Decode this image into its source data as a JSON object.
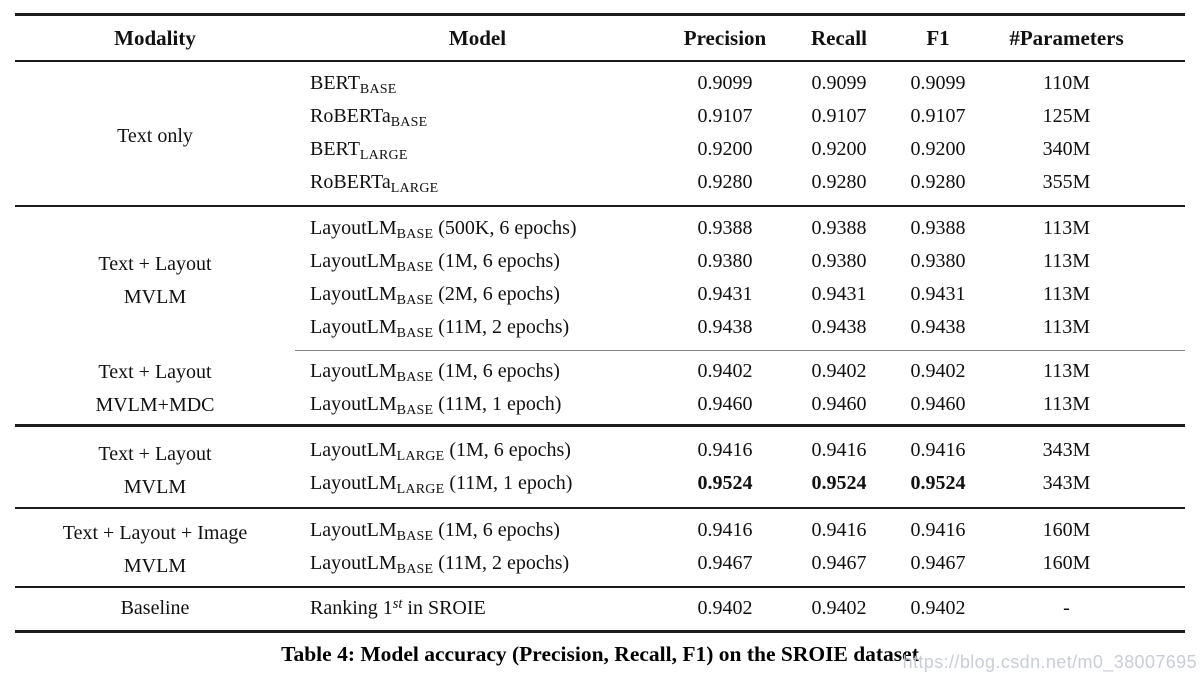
{
  "caption": "Table 4: Model accuracy (Precision, Recall, F1) on the SROIE dataset",
  "watermark": "https://blog.csdn.net/m0_38007695",
  "rule_colors": {
    "main": "#1c1c1c",
    "partial": "#8a8a8a"
  },
  "table": {
    "columns": [
      "Modality",
      "Model",
      "Precision",
      "Recall",
      "F1",
      "#Parameters"
    ],
    "sections": [
      {
        "modality_lines": [
          "Text only"
        ],
        "partial_rule_after": false,
        "rows": [
          {
            "model": [
              {
                "t": "text",
                "v": "BERT"
              },
              {
                "t": "sub",
                "v": "BASE"
              }
            ],
            "precision": "0.9099",
            "recall": "0.9099",
            "f1": "0.9099",
            "params": "110M",
            "bold": false
          },
          {
            "model": [
              {
                "t": "text",
                "v": "RoBERTa"
              },
              {
                "t": "sub",
                "v": "BASE"
              }
            ],
            "precision": "0.9107",
            "recall": "0.9107",
            "f1": "0.9107",
            "params": "125M",
            "bold": false
          },
          {
            "model": [
              {
                "t": "text",
                "v": "BERT"
              },
              {
                "t": "sub",
                "v": "LARGE"
              }
            ],
            "precision": "0.9200",
            "recall": "0.9200",
            "f1": "0.9200",
            "params": "340M",
            "bold": false
          },
          {
            "model": [
              {
                "t": "text",
                "v": "RoBERTa"
              },
              {
                "t": "sub",
                "v": "LARGE"
              }
            ],
            "precision": "0.9280",
            "recall": "0.9280",
            "f1": "0.9280",
            "params": "355M",
            "bold": false
          }
        ]
      },
      {
        "modality_lines": [
          "Text + Layout",
          "MVLM"
        ],
        "partial_rule_after": true,
        "rows": [
          {
            "model": [
              {
                "t": "text",
                "v": "LayoutLM"
              },
              {
                "t": "sub",
                "v": "BASE"
              },
              {
                "t": "text",
                "v": " (500K, 6 epochs)"
              }
            ],
            "precision": "0.9388",
            "recall": "0.9388",
            "f1": "0.9388",
            "params": "113M",
            "bold": false
          },
          {
            "model": [
              {
                "t": "text",
                "v": "LayoutLM"
              },
              {
                "t": "sub",
                "v": "BASE"
              },
              {
                "t": "text",
                "v": " (1M, 6 epochs)"
              }
            ],
            "precision": "0.9380",
            "recall": "0.9380",
            "f1": "0.9380",
            "params": "113M",
            "bold": false
          },
          {
            "model": [
              {
                "t": "text",
                "v": "LayoutLM"
              },
              {
                "t": "sub",
                "v": "BASE"
              },
              {
                "t": "text",
                "v": " (2M, 6 epochs)"
              }
            ],
            "precision": "0.9431",
            "recall": "0.9431",
            "f1": "0.9431",
            "params": "113M",
            "bold": false
          },
          {
            "model": [
              {
                "t": "text",
                "v": "LayoutLM"
              },
              {
                "t": "sub",
                "v": "BASE"
              },
              {
                "t": "text",
                "v": " (11M, 2 epochs)"
              }
            ],
            "precision": "0.9438",
            "recall": "0.9438",
            "f1": "0.9438",
            "params": "113M",
            "bold": false
          }
        ]
      },
      {
        "modality_lines": [
          "Text + Layout",
          "MVLM+MDC"
        ],
        "partial_rule_after": false,
        "rows": [
          {
            "model": [
              {
                "t": "text",
                "v": "LayoutLM"
              },
              {
                "t": "sub",
                "v": "BASE"
              },
              {
                "t": "text",
                "v": " (1M, 6 epochs)"
              }
            ],
            "precision": "0.9402",
            "recall": "0.9402",
            "f1": "0.9402",
            "params": "113M",
            "bold": false
          },
          {
            "model": [
              {
                "t": "text",
                "v": "LayoutLM"
              },
              {
                "t": "sub",
                "v": "BASE"
              },
              {
                "t": "text",
                "v": " (11M, 1 epoch)"
              }
            ],
            "precision": "0.9460",
            "recall": "0.9460",
            "f1": "0.9460",
            "params": "113M",
            "bold": false
          }
        ]
      },
      {
        "modality_lines": [
          "Text + Layout",
          "MVLM"
        ],
        "partial_rule_after": false,
        "rows": [
          {
            "model": [
              {
                "t": "text",
                "v": "LayoutLM"
              },
              {
                "t": "sub",
                "v": "LARGE"
              },
              {
                "t": "text",
                "v": " (1M, 6 epochs)"
              }
            ],
            "precision": "0.9416",
            "recall": "0.9416",
            "f1": "0.9416",
            "params": "343M",
            "bold": false
          },
          {
            "model": [
              {
                "t": "text",
                "v": "LayoutLM"
              },
              {
                "t": "sub",
                "v": "LARGE"
              },
              {
                "t": "text",
                "v": " (11M, 1 epoch)"
              }
            ],
            "precision": "0.9524",
            "recall": "0.9524",
            "f1": "0.9524",
            "params": "343M",
            "bold": true
          }
        ]
      },
      {
        "modality_lines": [
          "Text + Layout + Image",
          "MVLM"
        ],
        "partial_rule_after": false,
        "rows": [
          {
            "model": [
              {
                "t": "text",
                "v": "LayoutLM"
              },
              {
                "t": "sub",
                "v": "BASE"
              },
              {
                "t": "text",
                "v": " (1M, 6 epochs)"
              }
            ],
            "precision": "0.9416",
            "recall": "0.9416",
            "f1": "0.9416",
            "params": "160M",
            "bold": false
          },
          {
            "model": [
              {
                "t": "text",
                "v": "LayoutLM"
              },
              {
                "t": "sub",
                "v": "BASE"
              },
              {
                "t": "text",
                "v": " (11M, 2 epochs)"
              }
            ],
            "precision": "0.9467",
            "recall": "0.9467",
            "f1": "0.9467",
            "params": "160M",
            "bold": false
          }
        ]
      },
      {
        "modality_lines": [
          "Baseline"
        ],
        "partial_rule_after": false,
        "rows": [
          {
            "model": [
              {
                "t": "text",
                "v": "Ranking 1"
              },
              {
                "t": "sup",
                "v": "st"
              },
              {
                "t": "text",
                "v": " in SROIE"
              }
            ],
            "precision": "0.9402",
            "recall": "0.9402",
            "f1": "0.9402",
            "params": "-",
            "bold": false
          }
        ]
      }
    ]
  }
}
